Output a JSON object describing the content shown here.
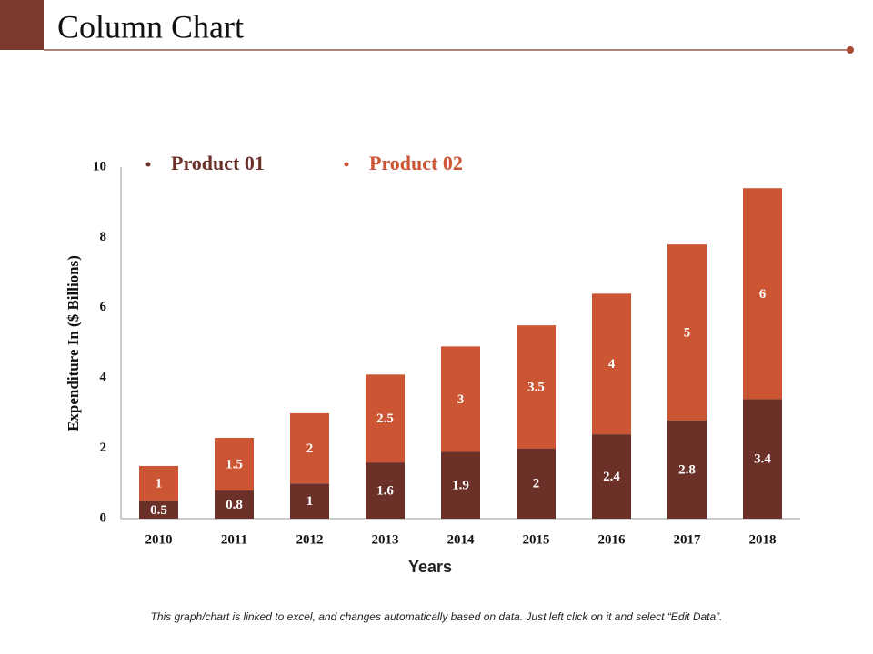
{
  "header": {
    "title": "Column Chart"
  },
  "footnote": "This graph/chart is linked to excel, and changes automatically based on data. Just left click on it and select “Edit Data”.",
  "chart_data": {
    "type": "bar",
    "stacked": true,
    "xlabel": "Years",
    "ylabel": "Expenditure In ($ Billions)",
    "categories": [
      "2010",
      "2011",
      "2012",
      "2013",
      "2014",
      "2015",
      "2016",
      "2017",
      "2018"
    ],
    "series": [
      {
        "name": "Product 01",
        "color": "#6b3129",
        "values": [
          0.5,
          0.8,
          1,
          1.6,
          1.9,
          2,
          2.4,
          2.8,
          3.4
        ]
      },
      {
        "name": "Product 02",
        "color": "#cc5533",
        "values": [
          1,
          1.5,
          2,
          2.5,
          3,
          3.5,
          4,
          5,
          6
        ]
      }
    ],
    "ylim": [
      0,
      10
    ],
    "yticks": [
      0,
      2,
      4,
      6,
      8,
      10
    ],
    "grid": false,
    "legend": "top"
  }
}
